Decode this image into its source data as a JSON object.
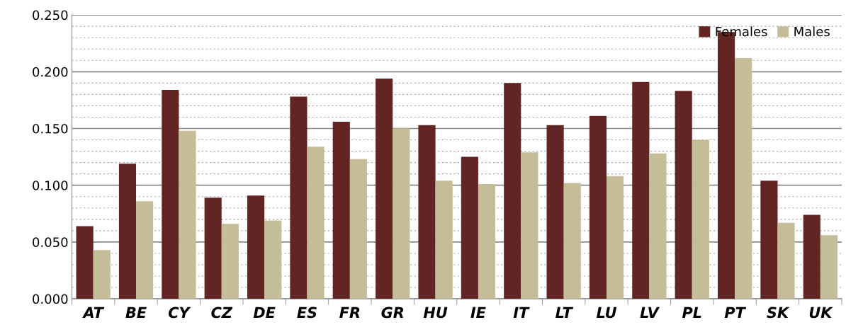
{
  "chart_data": {
    "type": "bar",
    "categories": [
      "AT",
      "BE",
      "CY",
      "CZ",
      "DE",
      "ES",
      "FR",
      "GR",
      "HU",
      "IE",
      "IT",
      "LT",
      "LU",
      "LV",
      "PL",
      "PT",
      "SK",
      "UK"
    ],
    "series": [
      {
        "name": "Females",
        "color": "#632523",
        "values": [
          0.064,
          0.119,
          0.184,
          0.089,
          0.091,
          0.178,
          0.156,
          0.194,
          0.153,
          0.125,
          0.19,
          0.153,
          0.161,
          0.191,
          0.183,
          0.235,
          0.104,
          0.074
        ]
      },
      {
        "name": "Males",
        "color": "#c4bd97",
        "values": [
          0.043,
          0.086,
          0.148,
          0.066,
          0.069,
          0.134,
          0.123,
          0.15,
          0.104,
          0.101,
          0.129,
          0.102,
          0.108,
          0.128,
          0.14,
          0.212,
          0.067,
          0.056
        ]
      }
    ],
    "ylim": [
      0,
      0.25
    ],
    "yticks": [
      {
        "value": 0,
        "label": "0.000"
      },
      {
        "value": 0.01,
        "label": null
      },
      {
        "value": 0.02,
        "label": null
      },
      {
        "value": 0.03,
        "label": null
      },
      {
        "value": 0.04,
        "label": null
      },
      {
        "value": 0.05,
        "label": "0.050"
      },
      {
        "value": 0.06,
        "label": null
      },
      {
        "value": 0.07,
        "label": null
      },
      {
        "value": 0.08,
        "label": null
      },
      {
        "value": 0.09,
        "label": null
      },
      {
        "value": 0.1,
        "label": "0.100"
      },
      {
        "value": 0.11,
        "label": null
      },
      {
        "value": 0.12,
        "label": null
      },
      {
        "value": 0.13,
        "label": null
      },
      {
        "value": 0.14,
        "label": null
      },
      {
        "value": 0.15,
        "label": "0.150"
      },
      {
        "value": 0.16,
        "label": null
      },
      {
        "value": 0.17,
        "label": null
      },
      {
        "value": 0.18,
        "label": null
      },
      {
        "value": 0.19,
        "label": null
      },
      {
        "value": 0.2,
        "label": "0.200"
      },
      {
        "value": 0.21,
        "label": null
      },
      {
        "value": 0.22,
        "label": null
      },
      {
        "value": 0.23,
        "label": null
      },
      {
        "value": 0.24,
        "label": null
      },
      {
        "value": 0.25,
        "label": "0.250"
      }
    ],
    "grid": "y",
    "legend": "top right"
  }
}
